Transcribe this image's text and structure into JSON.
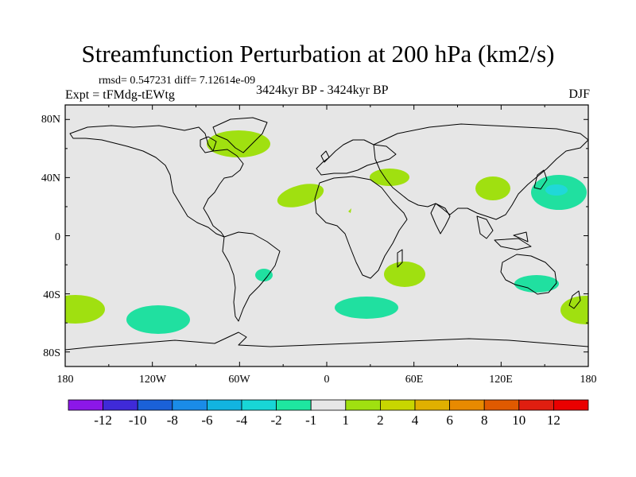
{
  "header": {
    "title": "Streamfunction Perturbation at 200 hPa (km2/s)",
    "stats": "rmsd= 0.547231 diff= 7.12614e-09",
    "experiment": "Expt = tFMdg-tEWtg",
    "period": "3424kyr BP - 3424kyr BP",
    "season": "DJF"
  },
  "map": {
    "lat_ticks": [
      "80N",
      "40N",
      "0",
      "40S",
      "80S"
    ],
    "lon_ticks": [
      "180",
      "120W",
      "60W",
      "0",
      "60E",
      "120E",
      "180"
    ],
    "colors": {
      "background": "#e6e6e6",
      "positive_1_2": "#a0e010",
      "negative_2_1": "#20e0a0",
      "negative_4_2": "#20d8d8",
      "coast": "#000000"
    }
  },
  "colorbar": {
    "labels": [
      "-12",
      "-10",
      "-8",
      "-6",
      "-4",
      "-2",
      "-1",
      "1",
      "2",
      "4",
      "6",
      "8",
      "10",
      "12"
    ],
    "colors": [
      "#8c17e8",
      "#3f2ad8",
      "#1a61d8",
      "#1a8ce8",
      "#12b4e0",
      "#18d6d6",
      "#1ee6a0",
      "#e6e6e6",
      "#a0e010",
      "#c8d600",
      "#e0b000",
      "#e88a00",
      "#e05a00",
      "#e01e10",
      "#ea0000"
    ]
  },
  "chart_data": {
    "type": "heatmap",
    "title": "Streamfunction Perturbation at 200 hPa (km2/s)",
    "variable": "streamfunction perturbation",
    "level": "200 hPa",
    "season": "DJF",
    "x_range": [
      -180,
      180
    ],
    "y_range": [
      -90,
      90
    ],
    "levels": [
      -12,
      -10,
      -8,
      -6,
      -4,
      -2,
      -1,
      1,
      2,
      4,
      6,
      8,
      10,
      12
    ],
    "features": [
      {
        "name": "Greenland",
        "lon": -45,
        "lat": 66,
        "sign": "positive",
        "class": "1..2"
      },
      {
        "name": "N Atlantic",
        "lon": -30,
        "lat": 33,
        "sign": "positive",
        "class": "1..2"
      },
      {
        "name": "Middle East",
        "lon": 45,
        "lat": 38,
        "sign": "positive",
        "class": "1..2"
      },
      {
        "name": "East Asia",
        "lon": 115,
        "lat": 32,
        "sign": "positive",
        "class": "1..2"
      },
      {
        "name": "NW Pacific",
        "lon": 155,
        "lat": 30,
        "sign": "negative",
        "class": "-4..-1"
      },
      {
        "name": "S Atlantic coast",
        "lon": -42,
        "lat": -28,
        "sign": "negative",
        "class": "-2..-1"
      },
      {
        "name": "SW Indian Ocean",
        "lon": 55,
        "lat": -28,
        "sign": "positive",
        "class": "1..2"
      },
      {
        "name": "S Australia",
        "lon": 150,
        "lat": -34,
        "sign": "negative",
        "class": "-2..-1"
      },
      {
        "name": "SE Pacific",
        "lon": -110,
        "lat": -60,
        "sign": "negative",
        "class": "-2..-1"
      },
      {
        "name": "S Atlantic",
        "lon": 28,
        "lat": -50,
        "sign": "negative",
        "class": "-2..-1"
      },
      {
        "name": "S Pacific west",
        "lon": -175,
        "lat": -50,
        "sign": "positive",
        "class": "1..2"
      },
      {
        "name": "Tasman Sea",
        "lon": 170,
        "lat": -50,
        "sign": "positive",
        "class": "1..2"
      }
    ]
  }
}
